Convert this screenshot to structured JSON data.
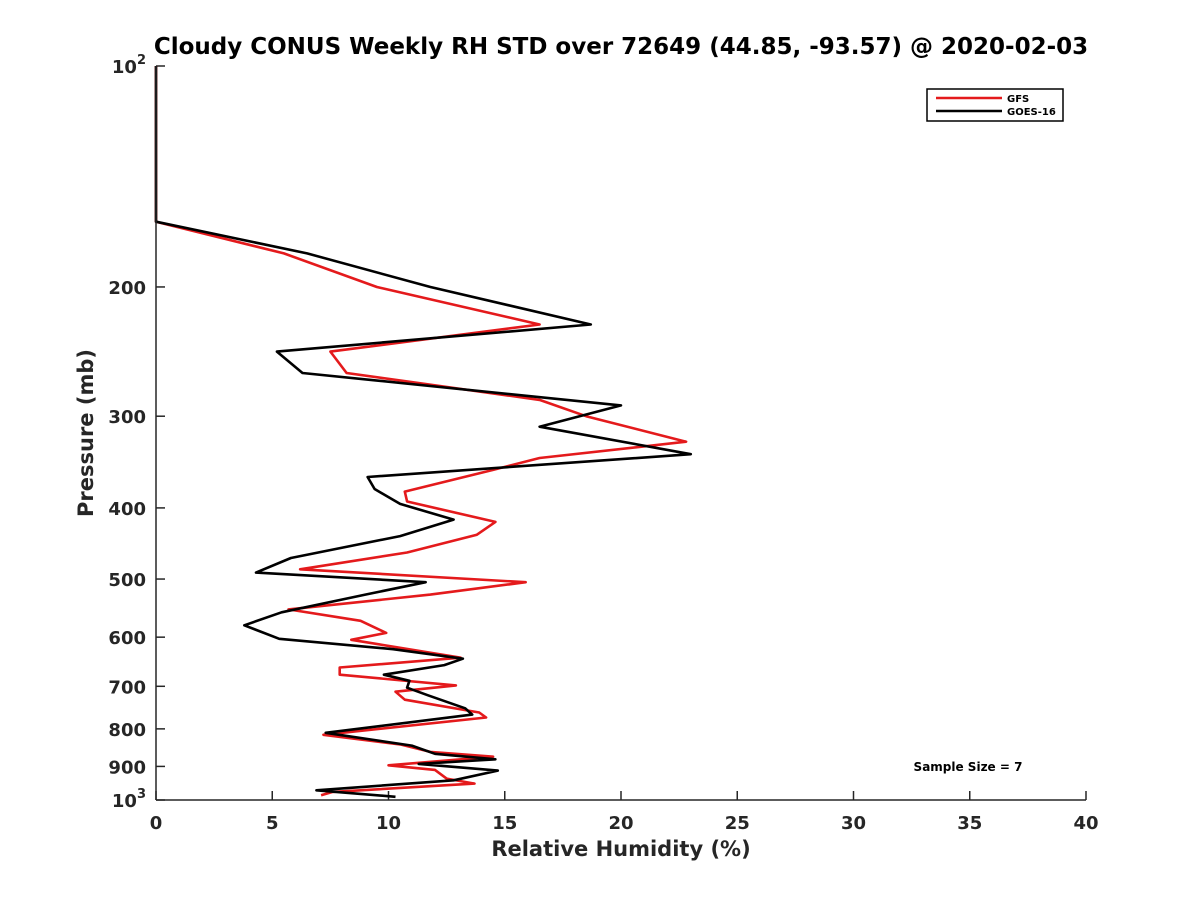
{
  "chart_data": {
    "type": "line",
    "title": "Cloudy CONUS Weekly RH STD over 72649 (44.85, -93.57) @ 2020-02-03",
    "xlabel": "Relative Humidity (%)",
    "ylabel": "Pressure (mb)",
    "xlim": [
      0,
      40
    ],
    "ylim": [
      100,
      1000
    ],
    "y_scale": "log",
    "y_reversed": true,
    "x_ticks": [
      "0",
      "5",
      "10",
      "15",
      "20",
      "25",
      "30",
      "35",
      "40"
    ],
    "y_ticks": [
      {
        "value": 100,
        "label": "10",
        "sup": "2"
      },
      {
        "value": 200,
        "label": "200",
        "sup": ""
      },
      {
        "value": 300,
        "label": "300",
        "sup": ""
      },
      {
        "value": 400,
        "label": "400",
        "sup": ""
      },
      {
        "value": 500,
        "label": "500",
        "sup": ""
      },
      {
        "value": 600,
        "label": "600",
        "sup": ""
      },
      {
        "value": 700,
        "label": "700",
        "sup": ""
      },
      {
        "value": 800,
        "label": "800",
        "sup": ""
      },
      {
        "value": 900,
        "label": "900",
        "sup": ""
      },
      {
        "value": 1000,
        "label": "10",
        "sup": "3"
      }
    ],
    "legend_position": "top-right",
    "annotation": "Sample Size = 7",
    "series": [
      {
        "name": "GFS",
        "color": "#e41a1c",
        "points": [
          [
            0,
            100
          ],
          [
            0,
            120
          ],
          [
            0,
            150
          ],
          [
            0,
            163
          ],
          [
            5.5,
            180
          ],
          [
            9.5,
            200
          ],
          [
            16.5,
            225
          ],
          [
            7.5,
            245
          ],
          [
            8.2,
            262
          ],
          [
            16.5,
            285
          ],
          [
            18.5,
            300
          ],
          [
            22.8,
            325
          ],
          [
            16.5,
            342
          ],
          [
            14.5,
            355
          ],
          [
            10.7,
            380
          ],
          [
            10.8,
            392
          ],
          [
            14.6,
            418
          ],
          [
            13.8,
            435
          ],
          [
            10.8,
            460
          ],
          [
            6.2,
            485
          ],
          [
            15.9,
            505
          ],
          [
            11.8,
            525
          ],
          [
            5.7,
            550
          ],
          [
            8.8,
            570
          ],
          [
            9.9,
            592
          ],
          [
            8.4,
            605
          ],
          [
            13.1,
            640
          ],
          [
            7.9,
            660
          ],
          [
            7.9,
            675
          ],
          [
            12.9,
            698
          ],
          [
            10.3,
            712
          ],
          [
            10.7,
            730
          ],
          [
            13.9,
            760
          ],
          [
            14.2,
            772
          ],
          [
            7.2,
            815
          ],
          [
            10.5,
            840
          ],
          [
            11.8,
            860
          ],
          [
            14.5,
            873
          ],
          [
            10.0,
            897
          ],
          [
            12.0,
            910
          ],
          [
            12.5,
            935
          ],
          [
            13.7,
            950
          ],
          [
            7.6,
            975
          ],
          [
            7.1,
            985
          ]
        ]
      },
      {
        "name": "GOES-16",
        "color": "#000000",
        "points": [
          [
            0,
            100
          ],
          [
            0,
            120
          ],
          [
            0,
            150
          ],
          [
            0,
            163
          ],
          [
            6.5,
            180
          ],
          [
            11.8,
            200
          ],
          [
            18.7,
            225
          ],
          [
            5.2,
            245
          ],
          [
            6.3,
            262
          ],
          [
            20.0,
            290
          ],
          [
            16.5,
            310
          ],
          [
            23.0,
            338
          ],
          [
            9.1,
            363
          ],
          [
            9.4,
            377
          ],
          [
            10.5,
            395
          ],
          [
            12.8,
            415
          ],
          [
            10.5,
            437
          ],
          [
            5.8,
            468
          ],
          [
            4.3,
            490
          ],
          [
            11.6,
            505
          ],
          [
            9.0,
            525
          ],
          [
            5.4,
            555
          ],
          [
            3.8,
            578
          ],
          [
            5.3,
            603
          ],
          [
            10.2,
            623
          ],
          [
            13.2,
            642
          ],
          [
            12.4,
            655
          ],
          [
            9.8,
            675
          ],
          [
            10.9,
            688
          ],
          [
            10.8,
            703
          ],
          [
            11.7,
            720
          ],
          [
            13.3,
            750
          ],
          [
            13.6,
            765
          ],
          [
            7.3,
            810
          ],
          [
            11.0,
            843
          ],
          [
            12.0,
            865
          ],
          [
            14.6,
            880
          ],
          [
            11.3,
            893
          ],
          [
            14.7,
            912
          ],
          [
            12.8,
            940
          ],
          [
            6.9,
            970
          ],
          [
            10.3,
            990
          ]
        ]
      }
    ]
  }
}
